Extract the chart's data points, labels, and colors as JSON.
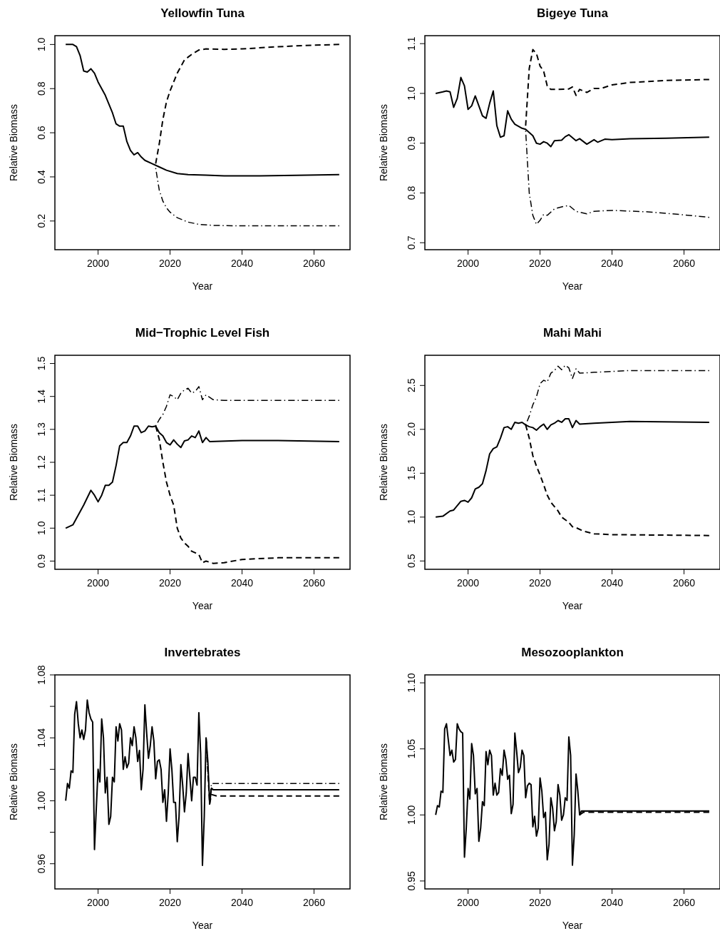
{
  "chart_data": [
    {
      "type": "line",
      "title": "Yellowfin Tuna",
      "xlabel": "Year",
      "ylabel": "Relative Biomass",
      "xlim": [
        1988,
        2070
      ],
      "xticks": [
        2000,
        2020,
        2040,
        2060
      ],
      "ylim": [
        0.07,
        1.04
      ],
      "yticks": [
        0.2,
        0.4,
        0.6,
        0.8,
        {
          "value": 1,
          "label": "1.0"
        }
      ],
      "series": [
        {
          "color": "#000000",
          "line_style": "solid",
          "x": [
            1991,
            1993,
            1994,
            1995,
            1996,
            1997,
            1998,
            1999,
            2000,
            2001,
            2002,
            2003,
            2004,
            2005,
            2006,
            2007,
            2008,
            2009,
            2010,
            2011,
            2012,
            2013,
            2015,
            2017,
            2019,
            2022,
            2025,
            2030,
            2035,
            2045,
            2055,
            2067
          ],
          "values": [
            1.0,
            1.0,
            0.99,
            0.95,
            0.88,
            0.875,
            0.89,
            0.87,
            0.83,
            0.8,
            0.77,
            0.73,
            0.69,
            0.64,
            0.63,
            0.63,
            0.56,
            0.52,
            0.5,
            0.51,
            0.49,
            0.475,
            0.46,
            0.445,
            0.43,
            0.415,
            0.41,
            0.408,
            0.405,
            0.405,
            0.407,
            0.41
          ]
        },
        {
          "color": "#000000",
          "line_style": "dashed",
          "x": [
            2016,
            2017,
            2018,
            2019,
            2020,
            2022,
            2024,
            2026,
            2028,
            2030,
            2035,
            2040,
            2050,
            2060,
            2067
          ],
          "values": [
            0.46,
            0.55,
            0.66,
            0.74,
            0.79,
            0.87,
            0.93,
            0.955,
            0.975,
            0.98,
            0.978,
            0.98,
            0.99,
            0.997,
            1.0
          ]
        },
        {
          "color": "#000000",
          "line_style": "dashdot",
          "x": [
            2016,
            2017,
            2018,
            2019,
            2020,
            2022,
            2025,
            2028,
            2032,
            2040,
            2067
          ],
          "values": [
            0.44,
            0.34,
            0.29,
            0.26,
            0.24,
            0.215,
            0.195,
            0.185,
            0.18,
            0.178,
            0.178
          ]
        }
      ]
    },
    {
      "type": "line",
      "title": "Bigeye Tuna",
      "xlabel": "Year",
      "ylabel": "Relative Biomass",
      "xlim": [
        1988,
        2070
      ],
      "xticks": [
        2000,
        2020,
        2040,
        2060
      ],
      "ylim": [
        0.686,
        1.116
      ],
      "yticks": [
        0.7,
        0.8,
        0.9,
        {
          "value": 1,
          "label": "1.0"
        },
        1.1
      ],
      "series": [
        {
          "color": "#000000",
          "line_style": "solid",
          "x": [
            1991,
            1993,
            1994,
            1995,
            1996,
            1997,
            1998,
            1999,
            2000,
            2001,
            2002,
            2003,
            2004,
            2005,
            2006,
            2007,
            2008,
            2009,
            2010,
            2011,
            2012,
            2013,
            2015,
            2016,
            2018,
            2019,
            2020,
            2021,
            2022,
            2023,
            2024,
            2026,
            2027,
            2028,
            2030,
            2031,
            2033,
            2035,
            2036,
            2038,
            2040,
            2045,
            2055,
            2067
          ],
          "values": [
            1.0,
            1.003,
            1.005,
            1.003,
            0.972,
            0.99,
            1.032,
            1.015,
            0.968,
            0.975,
            0.995,
            0.975,
            0.955,
            0.95,
            0.98,
            1.005,
            0.935,
            0.912,
            0.915,
            0.965,
            0.948,
            0.938,
            0.93,
            0.928,
            0.915,
            0.9,
            0.898,
            0.903,
            0.9,
            0.893,
            0.905,
            0.906,
            0.913,
            0.917,
            0.905,
            0.909,
            0.898,
            0.907,
            0.902,
            0.908,
            0.907,
            0.909,
            0.91,
            0.912
          ]
        },
        {
          "color": "#000000",
          "line_style": "dashed",
          "x": [
            2016,
            2017,
            2018,
            2019,
            2020,
            2021,
            2022,
            2023,
            2025,
            2028,
            2029,
            2030,
            2031,
            2033,
            2035,
            2037,
            2040,
            2045,
            2055,
            2067
          ],
          "values": [
            0.935,
            1.05,
            1.088,
            1.08,
            1.055,
            1.045,
            1.015,
            1.008,
            1.008,
            1.009,
            1.013,
            0.996,
            1.008,
            1.002,
            1.01,
            1.01,
            1.017,
            1.022,
            1.026,
            1.028
          ]
        },
        {
          "color": "#000000",
          "line_style": "dashdot",
          "x": [
            2016,
            2017,
            2018,
            2019,
            2020,
            2021,
            2022,
            2024,
            2026,
            2028,
            2030,
            2033,
            2035,
            2040,
            2050,
            2060,
            2067
          ],
          "values": [
            0.925,
            0.8,
            0.755,
            0.737,
            0.745,
            0.757,
            0.755,
            0.768,
            0.772,
            0.775,
            0.763,
            0.758,
            0.763,
            0.765,
            0.762,
            0.756,
            0.751
          ]
        }
      ]
    },
    {
      "type": "line",
      "title": "Mid−Trophic Level Fish",
      "xlabel": "Year",
      "ylabel": "Relative Biomass",
      "xlim": [
        1988,
        2070
      ],
      "xticks": [
        2000,
        2020,
        2040,
        2060
      ],
      "ylim": [
        0.875,
        1.525
      ],
      "yticks": [
        0.9,
        {
          "value": 1,
          "label": "1.0"
        },
        1.1,
        1.2,
        1.3,
        1.4,
        1.5
      ],
      "series": [
        {
          "color": "#000000",
          "line_style": "solid",
          "x": [
            1991,
            1993,
            1995,
            1996,
            1998,
            1999,
            2000,
            2001,
            2002,
            2003,
            2004,
            2005,
            2006,
            2007,
            2008,
            2009,
            2010,
            2011,
            2012,
            2013,
            2014,
            2015,
            2016,
            2017,
            2018,
            2019,
            2020,
            2021,
            2022,
            2023,
            2024,
            2025,
            2026,
            2027,
            2028,
            2029,
            2030,
            2031,
            2040,
            2050,
            2067
          ],
          "values": [
            1.0,
            1.01,
            1.05,
            1.07,
            1.115,
            1.1,
            1.08,
            1.1,
            1.13,
            1.13,
            1.14,
            1.19,
            1.25,
            1.26,
            1.26,
            1.28,
            1.31,
            1.31,
            1.29,
            1.295,
            1.31,
            1.308,
            1.31,
            1.29,
            1.28,
            1.26,
            1.253,
            1.268,
            1.255,
            1.245,
            1.265,
            1.268,
            1.28,
            1.275,
            1.295,
            1.26,
            1.275,
            1.263,
            1.266,
            1.266,
            1.263
          ]
        },
        {
          "color": "#000000",
          "line_style": "dashed",
          "x": [
            2016,
            2017,
            2018,
            2019,
            2020,
            2021,
            2022,
            2023,
            2024,
            2025,
            2026,
            2027,
            2028,
            2029,
            2030,
            2032,
            2035,
            2040,
            2050,
            2067
          ],
          "values": [
            1.31,
            1.27,
            1.2,
            1.14,
            1.1,
            1.07,
            1.0,
            0.97,
            0.955,
            0.945,
            0.93,
            0.925,
            0.92,
            0.895,
            0.9,
            0.893,
            0.895,
            0.905,
            0.91,
            0.91
          ]
        },
        {
          "color": "#000000",
          "line_style": "dashdot",
          "x": [
            2016,
            2017,
            2018,
            2019,
            2020,
            2021,
            2022,
            2023,
            2024,
            2025,
            2026,
            2027,
            2028,
            2029,
            2030,
            2032,
            2035,
            2067
          ],
          "values": [
            1.31,
            1.33,
            1.345,
            1.37,
            1.405,
            1.4,
            1.39,
            1.41,
            1.42,
            1.425,
            1.41,
            1.415,
            1.43,
            1.39,
            1.405,
            1.39,
            1.388,
            1.388
          ]
        }
      ]
    },
    {
      "type": "line",
      "title": "Mahi Mahi",
      "xlabel": "Year",
      "ylabel": "Relative Biomass",
      "xlim": [
        1988,
        2070
      ],
      "xticks": [
        2000,
        2020,
        2040,
        2060
      ],
      "ylim": [
        0.405,
        2.844
      ],
      "yticks": [
        0.5,
        {
          "value": 1,
          "label": "1.0"
        },
        1.5,
        {
          "value": 2,
          "label": "2.0"
        },
        2.5
      ],
      "series": [
        {
          "color": "#000000",
          "line_style": "solid",
          "x": [
            1991,
            1993,
            1995,
            1996,
            1998,
            1999,
            2000,
            2001,
            2002,
            2003,
            2004,
            2005,
            2006,
            2007,
            2008,
            2009,
            2010,
            2011,
            2012,
            2013,
            2014,
            2015,
            2016,
            2017,
            2018,
            2019,
            2020,
            2021,
            2022,
            2023,
            2024,
            2025,
            2026,
            2027,
            2028,
            2029,
            2030,
            2031,
            2035,
            2045,
            2067
          ],
          "values": [
            1.0,
            1.01,
            1.07,
            1.08,
            1.18,
            1.19,
            1.17,
            1.22,
            1.32,
            1.34,
            1.38,
            1.53,
            1.72,
            1.78,
            1.8,
            1.9,
            2.02,
            2.03,
            2.0,
            2.08,
            2.07,
            2.08,
            2.05,
            2.03,
            2.02,
            1.99,
            2.03,
            2.06,
            2.0,
            2.05,
            2.07,
            2.1,
            2.08,
            2.12,
            2.12,
            2.02,
            2.1,
            2.06,
            2.07,
            2.09,
            2.08
          ]
        },
        {
          "color": "#000000",
          "line_style": "dashed",
          "x": [
            2016,
            2017,
            2018,
            2019,
            2020,
            2021,
            2022,
            2023,
            2024,
            2025,
            2026,
            2027,
            2028,
            2029,
            2030,
            2032,
            2035,
            2040,
            2067
          ],
          "values": [
            2.05,
            1.9,
            1.7,
            1.58,
            1.48,
            1.37,
            1.25,
            1.17,
            1.12,
            1.07,
            1.0,
            0.97,
            0.94,
            0.89,
            0.88,
            0.84,
            0.81,
            0.8,
            0.79
          ]
        },
        {
          "color": "#000000",
          "line_style": "dashdot",
          "x": [
            2016,
            2017,
            2018,
            2019,
            2020,
            2021,
            2022,
            2023,
            2024,
            2025,
            2026,
            2027,
            2028,
            2029,
            2030,
            2031,
            2035,
            2045,
            2067
          ],
          "values": [
            2.05,
            2.15,
            2.28,
            2.37,
            2.52,
            2.56,
            2.54,
            2.64,
            2.67,
            2.72,
            2.68,
            2.73,
            2.7,
            2.58,
            2.69,
            2.64,
            2.65,
            2.67,
            2.67
          ]
        }
      ]
    },
    {
      "type": "line",
      "title": "Invertebrates",
      "xlabel": "Year",
      "ylabel": "Relative Biomass",
      "xlim": [
        1988,
        2070
      ],
      "xticks": [
        2000,
        2020,
        2040,
        2060
      ],
      "ylim": [
        0.944,
        1.08
      ],
      "yticks": [
        0.96,
        {
          "value": 0.98,
          "label": null
        },
        {
          "value": 1,
          "label": "1.00"
        },
        {
          "value": 1.02,
          "label": null
        },
        1.04,
        {
          "value": 1.06,
          "label": null
        },
        1.08
      ],
      "series": [
        {
          "color": "#000000",
          "line_style": "solid",
          "x": [
            1991,
            1991.5,
            1992,
            1992.5,
            1993,
            1993.5,
            1994,
            1994.5,
            1995,
            1995.5,
            1996,
            1996.5,
            1997,
            1997.5,
            1998,
            1998.5,
            1999,
            1999.5,
            2000,
            2000.5,
            2001,
            2001.5,
            2002,
            2002.5,
            2003,
            2003.5,
            2004,
            2004.5,
            2005,
            2005.5,
            2006,
            2006.5,
            2007,
            2007.5,
            2008,
            2008.5,
            2009,
            2009.5,
            2010,
            2010.5,
            2011,
            2011.5,
            2012,
            2012.5,
            2013,
            2013.5,
            2014,
            2014.5,
            2015,
            2015.5,
            2016,
            2016.5,
            2017,
            2017.5,
            2018,
            2018.5,
            2019,
            2019.5,
            2020,
            2020.5,
            2021,
            2021.5,
            2022,
            2022.5,
            2023,
            2023.5,
            2024,
            2024.5,
            2025,
            2025.5,
            2026,
            2026.5,
            2027,
            2027.5,
            2028,
            2028.5,
            2029,
            2029.5,
            2030,
            2030.5,
            2031,
            2031.5,
            2032,
            2035,
            2067
          ],
          "values": [
            1.0,
            1.011,
            1.008,
            1.019,
            1.018,
            1.055,
            1.063,
            1.049,
            1.04,
            1.045,
            1.039,
            1.045,
            1.064,
            1.056,
            1.052,
            1.05,
            0.969,
            0.995,
            1.02,
            1.012,
            1.052,
            1.04,
            1.005,
            1.015,
            0.985,
            0.99,
            1.015,
            1.012,
            1.047,
            1.038,
            1.049,
            1.045,
            1.02,
            1.028,
            1.021,
            1.024,
            1.04,
            1.035,
            1.047,
            1.04,
            1.025,
            1.032,
            1.007,
            1.02,
            1.061,
            1.043,
            1.027,
            1.035,
            1.047,
            1.038,
            1.014,
            1.025,
            1.026,
            1.02,
            0.999,
            1.007,
            0.987,
            1.005,
            1.033,
            1.02,
            0.999,
            0.999,
            0.974,
            0.99,
            1.023,
            1.01,
            0.993,
            1.005,
            1.03,
            1.015,
            1.0,
            1.015,
            1.015,
            1.01,
            1.056,
            1.03,
            0.959,
            0.99,
            1.04,
            1.025,
            0.998,
            1.008,
            1.007,
            1.007,
            1.007
          ]
        },
        {
          "color": "#000000",
          "line_style": "dashed",
          "x": [
            2030,
            2031,
            2031.5,
            2033,
            2067
          ],
          "values": [
            1.04,
            0.998,
            1.004,
            1.003,
            1.003
          ]
        },
        {
          "color": "#000000",
          "line_style": "dashdot",
          "x": [
            2030,
            2031,
            2031.5,
            2033,
            2067
          ],
          "values": [
            1.04,
            1.0,
            1.011,
            1.011,
            1.011
          ]
        }
      ]
    },
    {
      "type": "line",
      "title": "Mesozooplankton",
      "xlabel": "Year",
      "ylabel": "Relative Biomass",
      "xlim": [
        1988,
        2070
      ],
      "xticks": [
        2000,
        2020,
        2040,
        2060
      ],
      "ylim": [
        0.944,
        1.106
      ],
      "yticks": [
        0.95,
        {
          "value": 1,
          "label": "1.00"
        },
        1.05,
        {
          "value": 1.1,
          "label": "1.10"
        }
      ],
      "series": [
        {
          "color": "#000000",
          "line_style": "solid",
          "x": [
            1991,
            1991.5,
            1992,
            1992.5,
            1993,
            1993.5,
            1994,
            1994.5,
            1995,
            1995.5,
            1996,
            1996.5,
            1997,
            1997.5,
            1998,
            1998.5,
            1999,
            1999.5,
            2000,
            2000.5,
            2001,
            2001.5,
            2002,
            2002.5,
            2003,
            2003.5,
            2004,
            2004.5,
            2005,
            2005.5,
            2006,
            2006.5,
            2007,
            2007.5,
            2008,
            2008.5,
            2009,
            2009.5,
            2010,
            2010.5,
            2011,
            2011.5,
            2012,
            2012.5,
            2013,
            2013.5,
            2014,
            2014.5,
            2015,
            2015.5,
            2016,
            2016.5,
            2017,
            2017.5,
            2018,
            2018.5,
            2019,
            2019.5,
            2020,
            2020.5,
            2021,
            2021.5,
            2022,
            2022.5,
            2023,
            2023.5,
            2024,
            2024.5,
            2025,
            2025.5,
            2026,
            2026.5,
            2027,
            2027.5,
            2028,
            2028.5,
            2029,
            2029.5,
            2030,
            2030.5,
            2031,
            2031.5,
            2067
          ],
          "values": [
            1.0,
            1.007,
            1.006,
            1.018,
            1.017,
            1.065,
            1.069,
            1.057,
            1.045,
            1.049,
            1.04,
            1.042,
            1.069,
            1.065,
            1.063,
            1.062,
            0.968,
            0.99,
            1.02,
            1.012,
            1.054,
            1.045,
            1.016,
            1.02,
            0.98,
            0.99,
            1.01,
            1.007,
            1.048,
            1.038,
            1.049,
            1.045,
            1.015,
            1.024,
            1.015,
            1.017,
            1.035,
            1.03,
            1.049,
            1.042,
            1.027,
            1.03,
            1.001,
            1.008,
            1.062,
            1.048,
            1.032,
            1.036,
            1.049,
            1.045,
            1.013,
            1.022,
            1.024,
            1.023,
            0.991,
            0.999,
            0.984,
            0.99,
            1.028,
            1.018,
            0.998,
            1.002,
            0.966,
            0.978,
            1.013,
            1.005,
            0.988,
            0.995,
            1.023,
            1.015,
            0.996,
            1.0,
            1.013,
            1.011,
            1.059,
            1.045,
            0.962,
            0.985,
            1.031,
            1.018,
            1.0,
            1.003,
            1.003
          ]
        },
        {
          "color": "#000000",
          "line_style": "dashed",
          "x": [
            2031,
            2032,
            2067
          ],
          "values": [
            1.0,
            1.002,
            1.002
          ]
        },
        {
          "color": "#000000",
          "line_style": "dashdot",
          "x": [
            2031,
            2032,
            2067
          ],
          "values": [
            1.0,
            1.003,
            1.003
          ]
        }
      ]
    }
  ]
}
